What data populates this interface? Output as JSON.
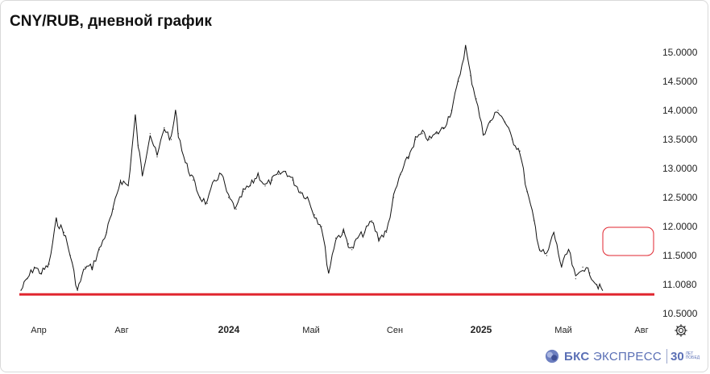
{
  "title": "CNY/RUB, дневной график",
  "chart_data": {
    "type": "line",
    "title": "CNY/RUB, дневной график",
    "xlabel": "",
    "ylabel": "",
    "x_ticks": [
      "Апр",
      "Авг",
      "2024",
      "Май",
      "Сен",
      "2025",
      "Май",
      "Авг"
    ],
    "y_ticks": [
      "15.0000",
      "14.5000",
      "14.0000",
      "13.5000",
      "13.0000",
      "12.5000",
      "12.0000",
      "11.5000",
      "11.0080",
      "10.5000"
    ],
    "ylim": [
      10.35,
      15.2
    ],
    "support_level": 10.83,
    "support_color": "#e0262f",
    "grid": false,
    "series": [
      {
        "x": [
          "2023-03-01",
          "2023-03-10",
          "2023-03-20",
          "2023-03-30",
          "2023-04-10",
          "2023-04-20",
          "2023-05-01",
          "2023-05-10",
          "2023-05-20",
          "2023-05-31",
          "2023-06-10",
          "2023-06-20",
          "2023-06-30",
          "2023-07-10",
          "2023-07-20",
          "2023-07-31",
          "2023-08-10",
          "2023-08-14",
          "2023-08-20",
          "2023-08-31",
          "2023-09-10",
          "2023-09-20",
          "2023-09-30",
          "2023-10-06",
          "2023-10-10",
          "2023-10-20",
          "2023-10-31",
          "2023-11-10",
          "2023-11-20",
          "2023-11-30",
          "2023-12-10",
          "2023-12-20",
          "2023-12-31",
          "2024-01-10",
          "2024-01-20",
          "2024-01-31",
          "2024-02-10",
          "2024-02-20",
          "2024-02-29",
          "2024-03-10",
          "2024-03-20",
          "2024-03-31",
          "2024-04-10",
          "2024-04-20",
          "2024-04-30",
          "2024-05-10",
          "2024-05-20",
          "2024-05-31",
          "2024-06-07",
          "2024-06-12",
          "2024-06-20",
          "2024-06-30",
          "2024-07-10",
          "2024-07-20",
          "2024-07-31",
          "2024-08-10",
          "2024-08-20",
          "2024-08-31",
          "2024-09-10",
          "2024-09-20",
          "2024-09-30",
          "2024-10-10",
          "2024-10-20",
          "2024-10-31",
          "2024-11-10",
          "2024-11-20",
          "2024-11-27",
          "2024-12-05",
          "2024-12-15",
          "2024-12-25",
          "2025-01-05",
          "2025-01-15",
          "2025-01-25",
          "2025-02-05",
          "2025-02-15",
          "2025-02-25",
          "2025-03-05",
          "2025-03-15",
          "2025-03-25",
          "2025-04-05",
          "2025-04-15",
          "2025-04-25",
          "2025-05-05",
          "2025-05-15",
          "2025-05-25",
          "2025-06-02"
        ],
        "values": [
          10.9,
          11.1,
          11.3,
          11.2,
          11.35,
          12.1,
          11.9,
          11.5,
          10.9,
          11.3,
          11.3,
          11.6,
          11.9,
          12.3,
          12.8,
          12.7,
          13.9,
          13.4,
          12.9,
          13.6,
          13.2,
          13.7,
          13.5,
          14.0,
          13.6,
          13.1,
          12.8,
          12.5,
          12.4,
          12.8,
          12.9,
          12.5,
          12.3,
          12.6,
          12.7,
          12.9,
          12.7,
          12.8,
          12.9,
          12.95,
          12.8,
          12.6,
          12.5,
          12.2,
          12.0,
          11.2,
          11.8,
          11.9,
          11.7,
          11.6,
          11.8,
          11.9,
          12.1,
          11.8,
          11.9,
          12.5,
          12.9,
          13.2,
          13.5,
          13.6,
          13.5,
          13.6,
          13.7,
          14.0,
          14.5,
          15.1,
          14.6,
          14.2,
          13.6,
          13.8,
          14.0,
          13.8,
          13.5,
          13.3,
          12.6,
          12.1,
          11.6,
          11.5,
          11.9,
          11.3,
          11.6,
          11.1,
          11.3,
          11.2,
          11.0,
          10.9
        ]
      }
    ]
  },
  "logo": {
    "brand_bold": "БКС",
    "brand_rest": " ЭКСПРЕСС",
    "anniv_num": "30",
    "anniv_sub": "ЛЕТ ПОБЕД"
  }
}
